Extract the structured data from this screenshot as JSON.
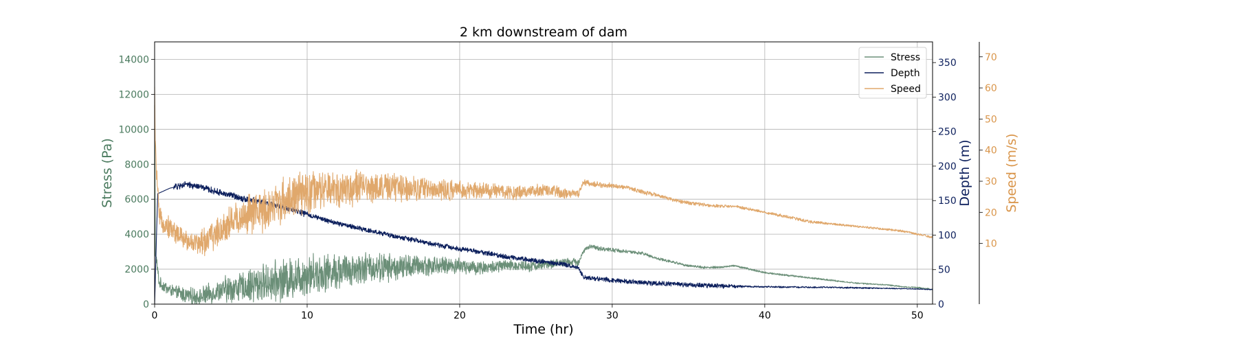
{
  "chart_data": {
    "type": "line",
    "title": "2 km downstream of dam",
    "xlabel": "Time (hr)",
    "xlim": [
      0,
      51
    ],
    "x_ticks": [
      "0",
      "10",
      "20",
      "30",
      "40",
      "50"
    ],
    "grid": true,
    "legend_placement": "top-right",
    "axes": [
      {
        "id": "stress",
        "label": "Stress (Pa)",
        "side": "left",
        "ylim": [
          0,
          15000
        ],
        "ticks": [
          "0",
          "2000",
          "4000",
          "6000",
          "8000",
          "10000",
          "12000",
          "14000"
        ],
        "color": "#4a7a5e"
      },
      {
        "id": "depth",
        "label": "Depth (m)",
        "side": "right",
        "ylim": [
          0,
          380
        ],
        "ticks": [
          "0",
          "50",
          "100",
          "150",
          "200",
          "250",
          "300",
          "350"
        ],
        "color": "#0c1f5c"
      },
      {
        "id": "speed",
        "label": "Speed (m/s)",
        "side": "right-offset",
        "ylim": [
          -9.5,
          74.8
        ],
        "ticks": [
          "10",
          "20",
          "30",
          "40",
          "50",
          "60",
          "70"
        ],
        "color": "#d9954a"
      }
    ],
    "series": [
      {
        "name": "Stress",
        "axis": "stress",
        "color": "#6b8f78",
        "x": [
          0,
          0.05,
          0.3,
          1,
          2,
          3,
          4,
          5,
          6,
          7,
          8,
          9,
          10,
          11,
          12,
          13,
          14,
          15,
          16,
          17,
          18,
          19,
          20,
          21,
          22,
          23,
          24,
          25,
          26,
          27,
          27.8,
          28.1,
          28.5,
          29,
          30,
          31,
          32,
          33,
          34,
          35,
          36,
          37,
          38,
          39,
          40,
          41,
          42,
          43,
          44,
          45,
          46,
          47,
          48,
          49,
          50,
          51
        ],
        "y": [
          11300,
          3000,
          1200,
          800,
          500,
          400,
          700,
          900,
          1000,
          1200,
          1300,
          1500,
          1700,
          1800,
          1900,
          2000,
          2100,
          2100,
          2100,
          2200,
          2200,
          2200,
          2200,
          2100,
          2100,
          2200,
          2200,
          2200,
          2300,
          2400,
          2400,
          3000,
          3300,
          3200,
          3100,
          3000,
          2900,
          2600,
          2400,
          2200,
          2100,
          2100,
          2200,
          2000,
          1800,
          1700,
          1600,
          1500,
          1400,
          1300,
          1200,
          1150,
          1100,
          1000,
          950,
          850
        ],
        "noise": [
          300,
          400,
          500,
          700,
          900,
          1000,
          1000,
          900,
          800,
          700,
          600,
          500,
          400,
          350,
          300,
          280,
          250,
          200,
          120,
          100,
          80,
          70,
          60,
          60,
          50,
          50,
          50,
          40,
          40,
          30,
          30,
          30,
          30,
          30
        ]
      },
      {
        "name": "Depth",
        "axis": "depth",
        "color": "#0c1f5c",
        "x": [
          0,
          0.2,
          0.5,
          1,
          2,
          3,
          4,
          5,
          6,
          7,
          8,
          9,
          10,
          11,
          12,
          13,
          14,
          15,
          16,
          17,
          18,
          19,
          20,
          21,
          22,
          23,
          24,
          25,
          26,
          27,
          27.8,
          28.1,
          28.5,
          30,
          32,
          34,
          36,
          38,
          40,
          45,
          50,
          51
        ],
        "y": [
          0,
          160,
          163,
          168,
          173,
          170,
          163,
          158,
          152,
          148,
          142,
          137,
          130,
          123,
          117,
          112,
          107,
          102,
          97,
          93,
          88,
          84,
          80,
          77,
          73,
          69,
          66,
          63,
          60,
          57,
          52,
          40,
          38,
          35,
          31,
          29,
          27,
          26,
          25,
          24,
          22,
          21
        ],
        "noise": [
          0,
          4,
          4,
          4,
          4,
          4,
          4,
          4,
          3,
          3,
          3,
          3,
          3,
          3,
          3,
          3,
          3,
          3,
          3,
          3,
          3,
          3,
          3,
          3,
          3,
          3,
          3,
          3,
          3,
          3,
          2,
          1,
          1,
          1,
          1,
          1,
          1,
          1,
          0.6,
          0.5,
          0.5,
          0.5
        ]
      },
      {
        "name": "Speed",
        "axis": "speed",
        "color": "#e0a86c",
        "x": [
          0,
          0.05,
          0.3,
          1,
          2,
          3,
          4,
          5,
          6,
          7,
          8,
          9,
          10,
          11,
          12,
          13,
          14,
          15,
          16,
          17,
          18,
          19,
          20,
          21,
          22,
          23,
          24,
          25,
          26,
          27,
          27.8,
          28.1,
          28.5,
          29,
          30,
          31,
          32,
          33,
          34,
          35,
          36,
          37,
          38,
          39,
          40,
          41,
          42,
          43,
          44,
          45,
          46,
          47,
          48,
          49,
          50,
          51
        ],
        "y": [
          58,
          40,
          18,
          15,
          11,
          10,
          13,
          17,
          19,
          20,
          23,
          25,
          26,
          27,
          27.5,
          28,
          28,
          28,
          28,
          28,
          27.5,
          27,
          27,
          27,
          27,
          26.5,
          26.5,
          27,
          27,
          26,
          26,
          30,
          29,
          29,
          28.5,
          28,
          26.5,
          25.5,
          24,
          23,
          22.5,
          22,
          22,
          21,
          20,
          19,
          18,
          17,
          16.5,
          16,
          15.5,
          15,
          14.5,
          14,
          13,
          12
        ],
        "noise": [
          3,
          3,
          4,
          5,
          6,
          6,
          6,
          5,
          5,
          4,
          4,
          3.5,
          3,
          2.5,
          2.2,
          2,
          1.7,
          1.5,
          1,
          0.8,
          0.6,
          0.6,
          0.5,
          0.5,
          0.5,
          0.4,
          0.4,
          0.4,
          0.4,
          0.3,
          0.3,
          0.3,
          0.3,
          0.3,
          0.3
        ]
      }
    ]
  }
}
